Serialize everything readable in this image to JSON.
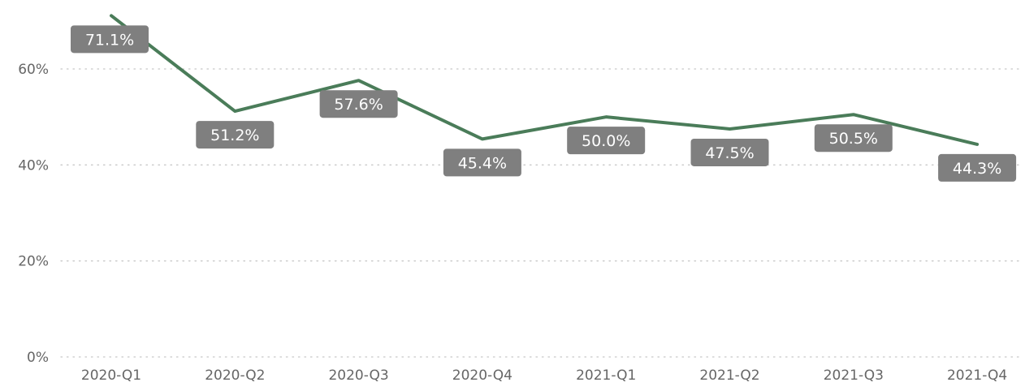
{
  "chart_data": {
    "type": "line",
    "title": "",
    "xlabel": "",
    "ylabel": "",
    "categories": [
      "2020-Q1",
      "2020-Q2",
      "2020-Q3",
      "2020-Q4",
      "2021-Q1",
      "2021-Q2",
      "2021-Q3",
      "2021-Q4"
    ],
    "series": [
      {
        "values": [
          71.1,
          51.2,
          57.6,
          45.4,
          50.0,
          47.5,
          50.5,
          44.3
        ],
        "labels": [
          "71.1%",
          "51.2%",
          "57.6%",
          "45.4%",
          "50.0%",
          "47.5%",
          "50.5%",
          "44.3%"
        ],
        "color": "#4a7c59"
      }
    ],
    "y_ticks": [
      0,
      20,
      40,
      60
    ],
    "y_tick_labels": [
      "0%",
      "20%",
      "40%",
      "60%"
    ],
    "ylim": [
      0,
      72
    ],
    "grid": true,
    "legend": "none",
    "label_box_color": "#7f7f7f",
    "grid_color": "#c8c8c8"
  }
}
